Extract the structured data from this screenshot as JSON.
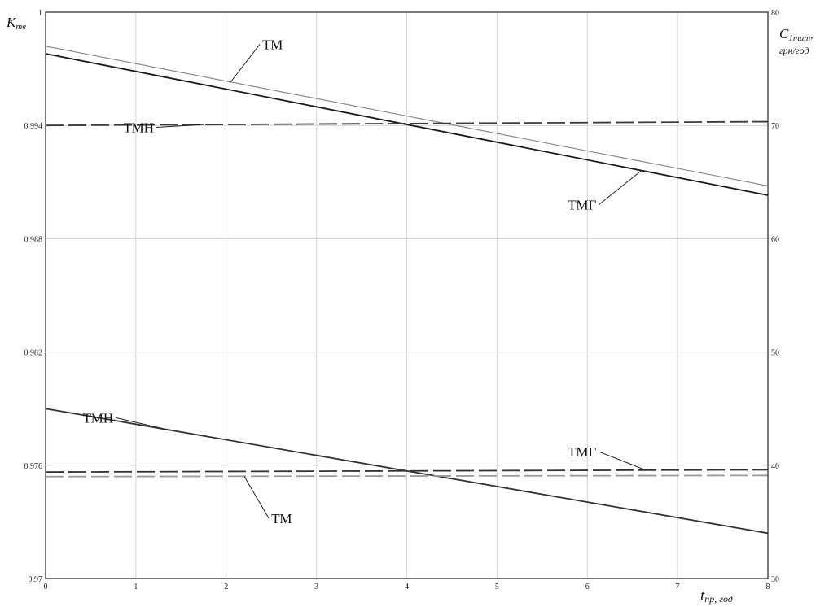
{
  "chart_data": {
    "type": "line",
    "x": [
      0,
      8
    ],
    "xlim": [
      0,
      8
    ],
    "x_ticks": [
      "0",
      "1",
      "2",
      "3",
      "4",
      "5",
      "6",
      "7",
      "8"
    ],
    "xlabel_main": "t",
    "xlabel_sub": "пр, год",
    "ylim_left": [
      0.97,
      1
    ],
    "y_ticks_left": [
      "0.97",
      "0.976",
      "0.982",
      "0.988",
      "0.994",
      "1"
    ],
    "ylabel_left_main": "K",
    "ylabel_left_sub": "тв",
    "ylim_right": [
      30,
      80
    ],
    "y_ticks_right": [
      "30",
      "40",
      "50",
      "60",
      "70",
      "80"
    ],
    "ylabel_right_main": "C",
    "ylabel_right_sub": "1тит",
    "ylabel_right_suffix": ",",
    "ylabel_right_line2": "грн/год",
    "grid": true,
    "series": [
      {
        "name": "ТМ",
        "axis": "left",
        "style": "solid-thin",
        "color": "#8a8a8a",
        "x": [
          0,
          8
        ],
        "y": [
          0.9982,
          0.9908
        ]
      },
      {
        "name": "ТМГ",
        "axis": "left",
        "style": "solid",
        "color": "#1a1a1a",
        "x": [
          0,
          8
        ],
        "y": [
          0.9978,
          0.9903
        ]
      },
      {
        "name": "ТМН",
        "axis": "left",
        "style": "dash",
        "color": "#3a3a3a",
        "x": [
          0,
          8
        ],
        "y": [
          0.994,
          0.9942
        ]
      },
      {
        "name": "ТМН",
        "axis": "right",
        "style": "solid",
        "color": "#333333",
        "x": [
          0,
          8
        ],
        "y": [
          45,
          34
        ]
      },
      {
        "name": "ТМГ",
        "axis": "right",
        "style": "dash",
        "color": "#333333",
        "x": [
          0,
          8
        ],
        "y": [
          39.4,
          39.6
        ]
      },
      {
        "name": "ТМ",
        "axis": "right",
        "style": "dash-light",
        "color": "#9a9a9a",
        "x": [
          0,
          8
        ],
        "y": [
          39.0,
          39.1
        ]
      }
    ],
    "annotations": [
      {
        "text": "ТМ",
        "series": 0,
        "x": 2.05,
        "label_x": 2.4,
        "label_y_axis": "left",
        "label_y": 0.9983
      },
      {
        "text": "ТМН",
        "series": 2,
        "x": 1.75,
        "label_x": 1.2,
        "label_y_axis": "left",
        "label_y": 0.9939
      },
      {
        "text": "ТМГ",
        "series": 1,
        "x": 6.6,
        "label_x": 6.1,
        "label_y_axis": "left",
        "label_y": 0.9898
      },
      {
        "text": "ТМН",
        "series": 3,
        "x": 1.35,
        "label_x": 0.75,
        "label_y_axis": "right",
        "label_y": 44.2
      },
      {
        "text": "ТМГ",
        "series": 4,
        "x": 6.65,
        "label_x": 6.1,
        "label_y_axis": "right",
        "label_y": 41.2
      },
      {
        "text": "ТМ",
        "series": 5,
        "x": 2.2,
        "label_x": 2.5,
        "label_y_axis": "right",
        "label_y": 35.3
      }
    ]
  }
}
